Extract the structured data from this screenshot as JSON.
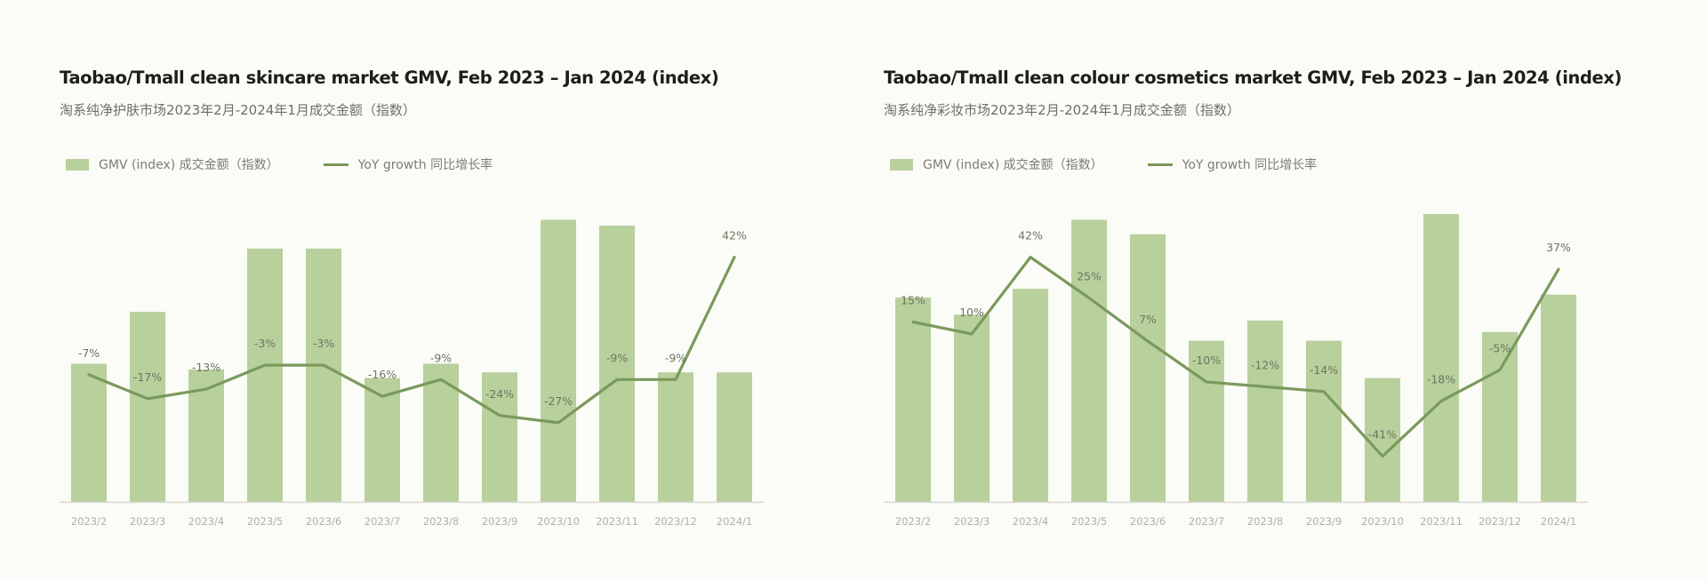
{
  "chart_data": [
    {
      "type": "bar",
      "title": "Taobao/Tmall clean skincare market GMV, Feb 2023 – Jan 2024 (index)",
      "subtitle": "淘系纯净护肤市场2023年2月-2024年1月成交金额（指数）",
      "legend": {
        "placement": "top-left",
        "bar_label": "GMV (index) 成交金额（指数）",
        "line_label": "YoY growth 同比增长率"
      },
      "categories": [
        "2023/2",
        "2023/3",
        "2023/4",
        "2023/5",
        "2023/6",
        "2023/7",
        "2023/8",
        "2023/9",
        "2023/10",
        "2023/11",
        "2023/12",
        "2024/1"
      ],
      "series": [
        {
          "type": "bar",
          "values": [
            48,
            66,
            46,
            88,
            88,
            43,
            48,
            45,
            98,
            96,
            45,
            45
          ]
        },
        {
          "type": "line",
          "values": [
            -7,
            -17,
            -13,
            -3,
            -3,
            -16,
            -9,
            -24,
            -27,
            -9,
            -9,
            42
          ],
          "labels": [
            "-7%",
            "-17%",
            "-13%",
            "-3%",
            "-3%",
            "-16%",
            "-9%",
            "-24%",
            "-27%",
            "-9%",
            "-9%",
            "42%"
          ]
        }
      ],
      "bar_ylim": [
        0,
        100
      ],
      "line_ylim": [
        -60,
        60
      ],
      "grid": false
    },
    {
      "type": "bar",
      "title": "Taobao/Tmall clean colour cosmetics market GMV, Feb 2023 – Jan 2024 (index)",
      "subtitle": "淘系纯净彩妆市场2023年2月-2024年1月成交金额（指数）",
      "legend": {
        "placement": "top-left",
        "bar_label": "GMV (index) 成交金额（指数）",
        "line_label": "YoY growth 同比增长率"
      },
      "categories": [
        "2023/2",
        "2023/3",
        "2023/4",
        "2023/5",
        "2023/6",
        "2023/7",
        "2023/8",
        "2023/9",
        "2023/10",
        "2023/11",
        "2023/12",
        "2024/1"
      ],
      "series": [
        {
          "type": "bar",
          "values": [
            71,
            65,
            74,
            98,
            93,
            56,
            63,
            56,
            43,
            100,
            59,
            72
          ]
        },
        {
          "type": "line",
          "values": [
            15,
            10,
            42,
            25,
            7,
            -10,
            -12,
            -14,
            -41,
            -18,
            -5,
            37
          ],
          "labels": [
            "15%",
            "10%",
            "42%",
            "25%",
            "7%",
            "-10%",
            "-12%",
            "-14%",
            "-41%",
            "-18%",
            "-5%",
            "37%"
          ]
        }
      ],
      "bar_ylim": [
        0,
        100
      ],
      "line_ylim": [
        -60,
        60
      ],
      "grid": false
    }
  ]
}
